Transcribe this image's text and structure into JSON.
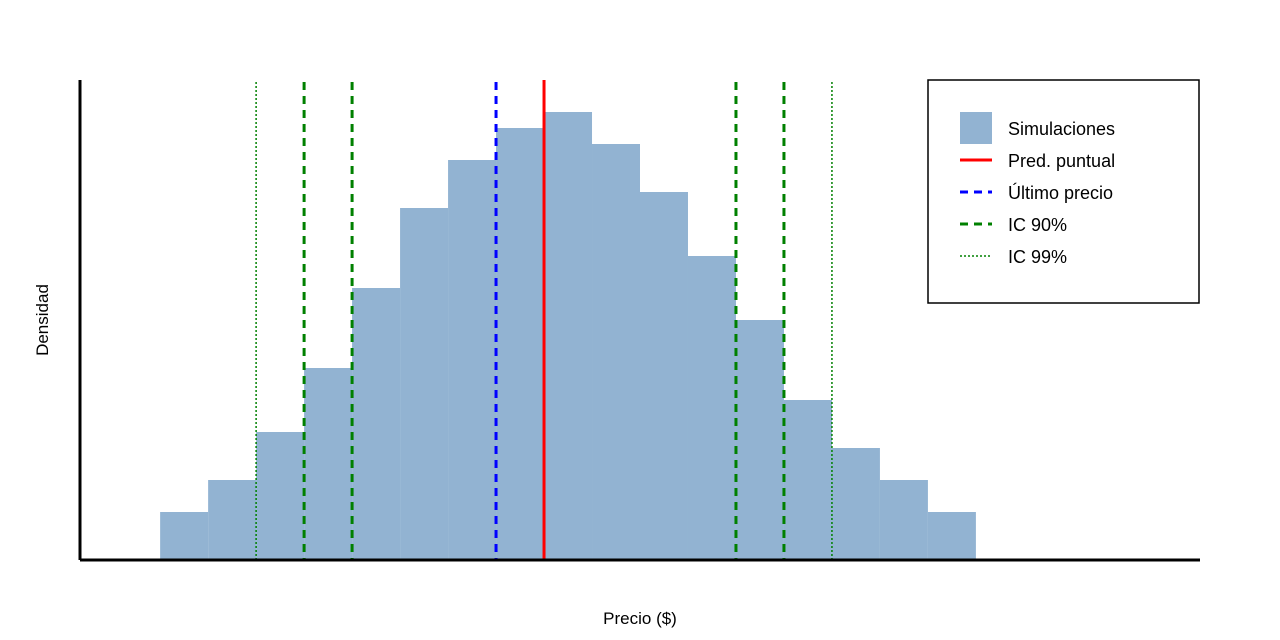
{
  "chart_data": {
    "type": "bar",
    "title": "",
    "xlabel": "Precio ($)",
    "ylabel": "Densidad",
    "grid": false,
    "legend_position": "top-right",
    "histogram": {
      "bins": [
        {
          "x0": 0,
          "x1": 1,
          "value": 3
        },
        {
          "x0": 1,
          "x1": 2,
          "value": 5
        },
        {
          "x0": 2,
          "x1": 3,
          "value": 8
        },
        {
          "x0": 3,
          "x1": 4,
          "value": 12
        },
        {
          "x0": 4,
          "x1": 5,
          "value": 17
        },
        {
          "x0": 5,
          "x1": 6,
          "value": 22
        },
        {
          "x0": 6,
          "x1": 7,
          "value": 25
        },
        {
          "x0": 7,
          "x1": 8,
          "value": 27
        },
        {
          "x0": 8,
          "x1": 9,
          "value": 28
        },
        {
          "x0": 9,
          "x1": 10,
          "value": 26
        },
        {
          "x0": 10,
          "x1": 11,
          "value": 23
        },
        {
          "x0": 11,
          "x1": 12,
          "value": 19
        },
        {
          "x0": 12,
          "x1": 13,
          "value": 15
        },
        {
          "x0": 13,
          "x1": 14,
          "value": 10
        },
        {
          "x0": 14,
          "x1": 15,
          "value": 7
        },
        {
          "x0": 15,
          "x1": 16,
          "value": 5
        },
        {
          "x0": 16,
          "x1": 17,
          "value": 3
        }
      ],
      "color": "#92b3d2"
    },
    "xlim": [
      -1.67,
      21.67
    ],
    "ylim": [
      0,
      30
    ],
    "vlines": [
      {
        "key": "ci99_lo",
        "x": 2,
        "style": "dotted",
        "color": "#008000",
        "legend_index": 4
      },
      {
        "key": "ci90_lo_outer",
        "x": 3,
        "style": "dashed",
        "color": "#008000",
        "legend_index": 3
      },
      {
        "key": "ci90_lo_inner",
        "x": 4,
        "style": "dashed",
        "color": "#008000",
        "legend_index": 3
      },
      {
        "key": "last_price",
        "x": 7,
        "style": "dashed",
        "color": "#0000ff",
        "legend_index": 2
      },
      {
        "key": "point_pred",
        "x": 8,
        "style": "solid",
        "color": "#ff0000",
        "legend_index": 1
      },
      {
        "key": "ci90_hi_inner",
        "x": 12,
        "style": "dashed",
        "color": "#008000",
        "legend_index": 3
      },
      {
        "key": "ci90_hi_outer",
        "x": 13,
        "style": "dashed",
        "color": "#008000",
        "legend_index": 3
      },
      {
        "key": "ci99_hi",
        "x": 14,
        "style": "dotted",
        "color": "#008000",
        "legend_index": 4
      }
    ],
    "legend": [
      {
        "label": "Simulaciones",
        "marker": "patch",
        "color": "#92b3d2"
      },
      {
        "label": "Pred. puntual",
        "marker": "solid",
        "color": "#ff0000"
      },
      {
        "label": "Último precio",
        "marker": "dashed",
        "color": "#0000ff"
      },
      {
        "label": "IC 90%",
        "marker": "dashed",
        "color": "#008000"
      },
      {
        "label": "IC 99%",
        "marker": "dotted",
        "color": "#008000"
      }
    ]
  }
}
